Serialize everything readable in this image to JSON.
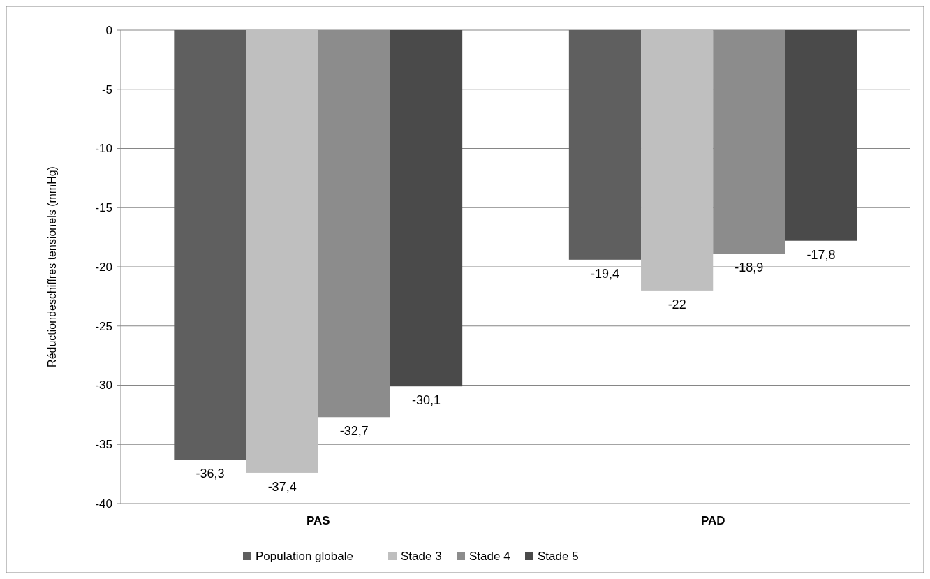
{
  "chart_data": {
    "type": "bar",
    "ylabel": "Réductiondeschiffres tensionels (mmHg)",
    "categories": [
      "PAS",
      "PAD"
    ],
    "series": [
      {
        "name": "Population globale",
        "color": "#5f5f5f",
        "values": [
          -36.3,
          -19.4
        ],
        "value_labels": [
          "-36,3",
          "-19,4"
        ]
      },
      {
        "name": "Stade 3",
        "color": "#bfbfbf",
        "values": [
          -37.4,
          -22
        ],
        "value_labels": [
          "-37,4",
          "-22"
        ]
      },
      {
        "name": "Stade 4",
        "color": "#8c8c8c",
        "values": [
          -32.7,
          -18.9
        ],
        "value_labels": [
          "-32,7",
          "-18,9"
        ]
      },
      {
        "name": "Stade 5",
        "color": "#4a4a4a",
        "values": [
          -30.1,
          -17.8
        ],
        "value_labels": [
          "-30,1",
          "-17,8"
        ]
      }
    ],
    "ylim": [
      -40,
      0
    ],
    "yticks": [
      0,
      -5,
      -10,
      -15,
      -20,
      -25,
      -30,
      -35,
      -40
    ],
    "grid": "y",
    "legend": "bottom"
  }
}
